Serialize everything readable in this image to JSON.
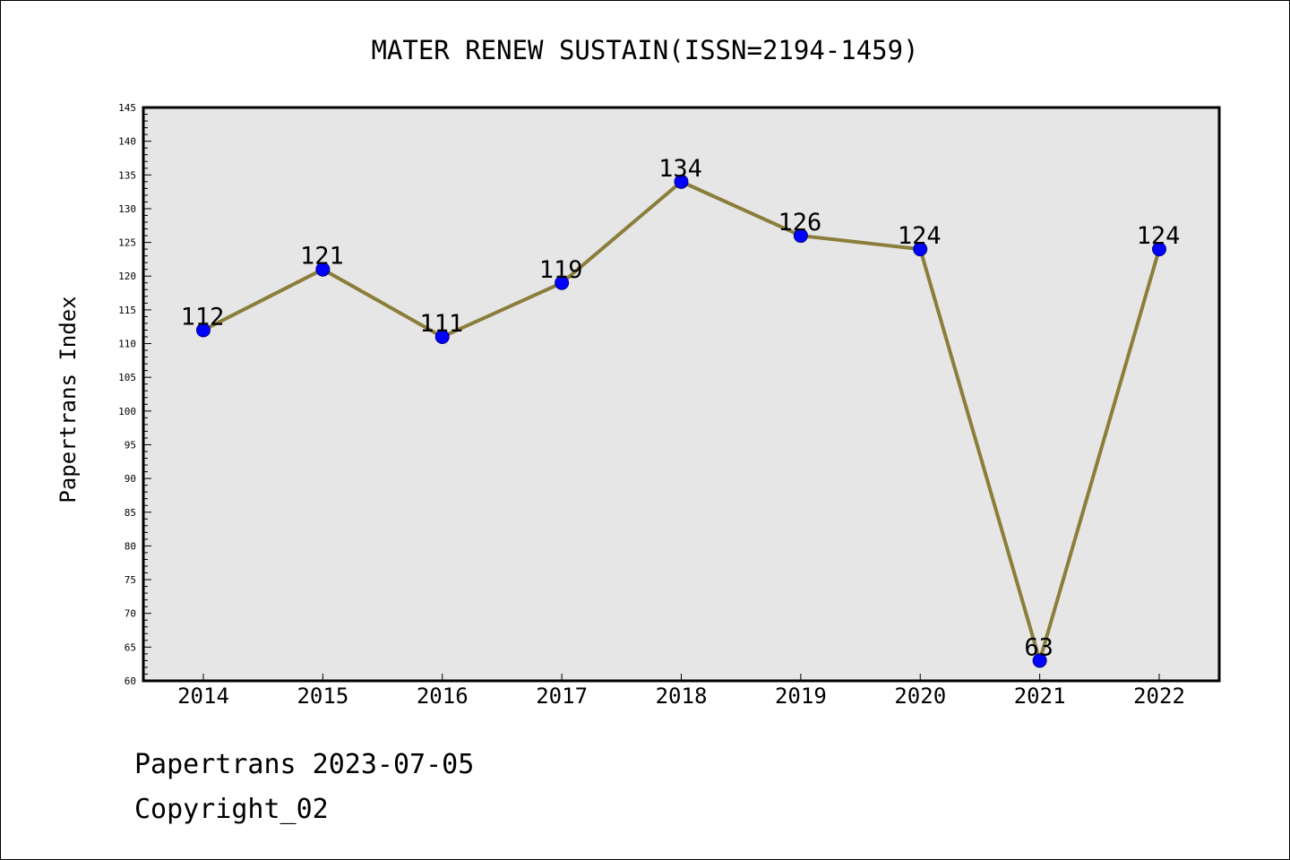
{
  "chart_data": {
    "type": "line",
    "title": "MATER RENEW SUSTAIN(ISSN=2194-1459)",
    "xlabel": "",
    "ylabel": "Papertrans Index",
    "categories": [
      "2014",
      "2015",
      "2016",
      "2017",
      "2018",
      "2019",
      "2020",
      "2021",
      "2022"
    ],
    "series": [
      {
        "values": [
          112,
          121,
          111,
          119,
          134,
          126,
          124,
          63,
          124
        ],
        "labels": [
          "112",
          "121",
          "111",
          "119",
          "134",
          "126",
          "124",
          "63",
          "124"
        ]
      }
    ],
    "ylim": [
      60,
      145
    ],
    "yticks": [
      "60",
      "65",
      "70",
      "75",
      "80",
      "85",
      "90",
      "95",
      "100",
      "105",
      "110",
      "115",
      "120",
      "125",
      "130",
      "135",
      "140",
      "145"
    ],
    "grid": false,
    "colors": {
      "plot_background": "#e6e6e6",
      "line": "#8b7d3a",
      "marker": "#0000ff",
      "marker_edge": "#000080",
      "axis": "#000000"
    }
  },
  "footer": {
    "date_line": "Papertrans 2023-07-05",
    "copyright": "Copyright_02"
  }
}
